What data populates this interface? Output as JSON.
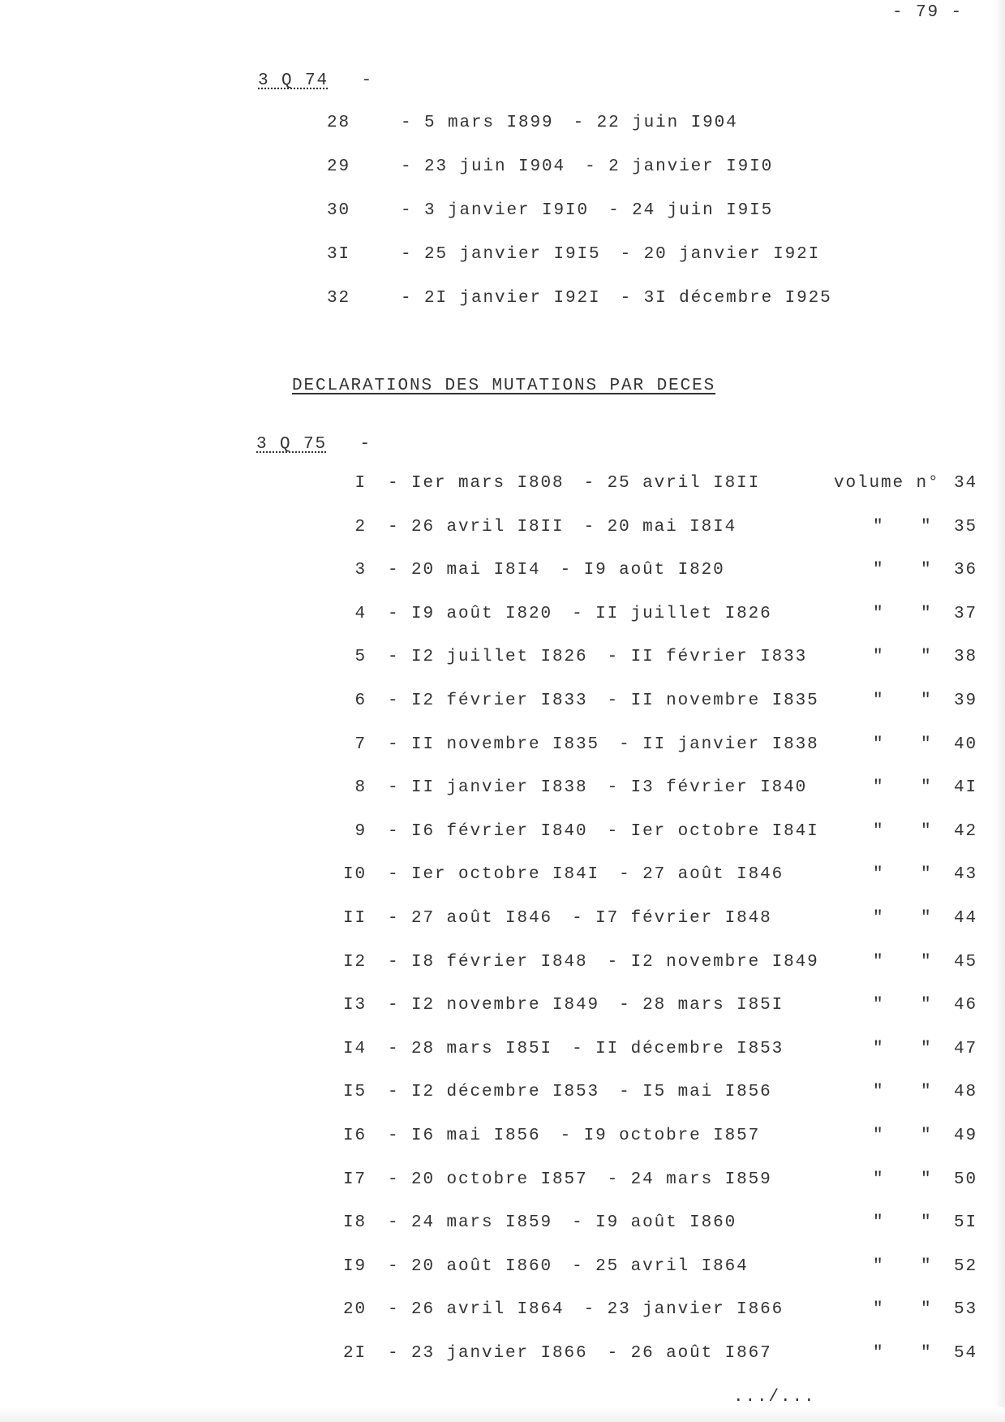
{
  "page_number": "- 79 -",
  "section1": {
    "code": "3 Q 74",
    "dash": "-",
    "rows": [
      {
        "num": "28",
        "from": "5 mars I899",
        "to": "22 juin I904"
      },
      {
        "num": "29",
        "from": "23 juin I904",
        "to": "2 janvier I9I0"
      },
      {
        "num": "30",
        "from": "3 janvier I9I0",
        "to": "24 juin I9I5"
      },
      {
        "num": "3I",
        "from": "25 janvier I9I5",
        "to": "20 janvier I92I"
      },
      {
        "num": "32",
        "from": "2I janvier I92I",
        "to": "3I décembre I925"
      }
    ]
  },
  "heading": "DECLARATIONS DES MUTATIONS PAR DECES",
  "section2": {
    "code": "3 Q 75",
    "dash": "-",
    "volume_label": "volume n°",
    "ditto": "\"",
    "rows": [
      {
        "num": "I",
        "from": "Ier mars I808",
        "to": "25 avril I8II",
        "volume": "34"
      },
      {
        "num": "2",
        "from": "26 avril I8II",
        "to": "20 mai I8I4",
        "volume": "35"
      },
      {
        "num": "3",
        "from": "20 mai I8I4",
        "to": "I9 août I820",
        "volume": "36"
      },
      {
        "num": "4",
        "from": "I9 août I820",
        "to": "II juillet I826",
        "volume": "37"
      },
      {
        "num": "5",
        "from": "I2 juillet I826",
        "to": "II février I833",
        "volume": "38"
      },
      {
        "num": "6",
        "from": "I2 février I833",
        "to": "II novembre I835",
        "volume": "39"
      },
      {
        "num": "7",
        "from": "II novembre I835",
        "to": "II janvier I838",
        "volume": "40"
      },
      {
        "num": "8",
        "from": "II janvier I838",
        "to": "I3 février I840",
        "volume": "4I"
      },
      {
        "num": "9",
        "from": "I6 février I840",
        "to": "Ier octobre I84I",
        "volume": "42"
      },
      {
        "num": "I0",
        "from": "Ier octobre I84I",
        "to": "27 août I846",
        "volume": "43"
      },
      {
        "num": "II",
        "from": "27 août I846",
        "to": "I7 février I848",
        "volume": "44"
      },
      {
        "num": "I2",
        "from": "I8 février I848",
        "to": "I2 novembre I849",
        "volume": "45"
      },
      {
        "num": "I3",
        "from": "I2 novembre I849",
        "to": "28 mars I85I",
        "volume": "46"
      },
      {
        "num": "I4",
        "from": "28 mars I85I",
        "to": "II décembre I853",
        "volume": "47"
      },
      {
        "num": "I5",
        "from": "I2 décembre I853",
        "to": "I5 mai I856",
        "volume": "48"
      },
      {
        "num": "I6",
        "from": "I6 mai I856",
        "to": "I9 octobre I857",
        "volume": "49"
      },
      {
        "num": "I7",
        "from": "20 octobre I857",
        "to": "24 mars I859",
        "volume": "50"
      },
      {
        "num": "I8",
        "from": "24 mars I859",
        "to": "I9 août I860",
        "volume": "5I"
      },
      {
        "num": "I9",
        "from": "20 août I860",
        "to": "25 avril I864",
        "volume": "52"
      },
      {
        "num": "20",
        "from": "26 avril I864",
        "to": "23 janvier I866",
        "volume": "53"
      },
      {
        "num": "2I",
        "from": "23 janvier I866",
        "to": "26 août I867",
        "volume": "54"
      }
    ]
  },
  "continuation": ".../..."
}
